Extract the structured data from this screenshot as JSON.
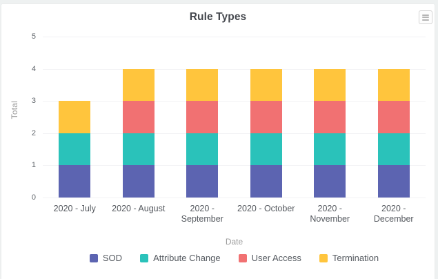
{
  "page": {
    "background_color": "#eef1f1",
    "card_color": "#ffffff"
  },
  "menu": {
    "icon": "hamburger-menu-icon"
  },
  "chart_data": {
    "type": "bar",
    "stacked": true,
    "title": "Rule Types",
    "xlabel": "Date",
    "ylabel": "Total",
    "ylim": [
      0,
      5
    ],
    "yticks": [
      0,
      1,
      2,
      3,
      4,
      5
    ],
    "grid": true,
    "legend_position": "bottom",
    "categories": [
      "2020 - July",
      "2020 - August",
      "2020 - September",
      "2020 - October",
      "2020 - November",
      "2020 - December"
    ],
    "category_label_lines": [
      [
        "2020 - July"
      ],
      [
        "2020 - August"
      ],
      [
        "2020 -",
        "September"
      ],
      [
        "2020 - October"
      ],
      [
        "2020 -",
        "November"
      ],
      [
        "2020 -",
        "December"
      ]
    ],
    "series": [
      {
        "name": "SOD",
        "color": "#5C64B1",
        "values": [
          1,
          1,
          1,
          1,
          1,
          1
        ]
      },
      {
        "name": "Attribute Change",
        "color": "#2AC2BA",
        "values": [
          1,
          1,
          1,
          1,
          1,
          1
        ]
      },
      {
        "name": "User Access",
        "color": "#F17172",
        "values": [
          0,
          1,
          1,
          1,
          1,
          1
        ]
      },
      {
        "name": "Termination",
        "color": "#FFC53D",
        "values": [
          1,
          1,
          1,
          1,
          1,
          1
        ]
      }
    ],
    "totals": [
      3,
      4,
      4,
      4,
      4,
      4
    ]
  }
}
